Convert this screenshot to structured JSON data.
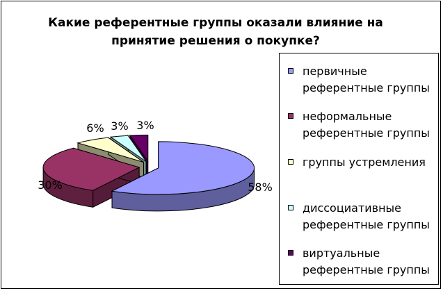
{
  "chart_data": {
    "type": "pie",
    "title": "Какие референтные группы оказали влияние на принятие решения о покупке?",
    "categories": [
      "первичные референтные группы",
      "неформальные референтные группы",
      "группы устремления",
      "диссоциативные референтные группы",
      "виртуальные референтные группы"
    ],
    "values": [
      58,
      30,
      6,
      3,
      3
    ],
    "data_labels": [
      "58%",
      "30%",
      "6%",
      "3%",
      "3%"
    ],
    "colors": [
      "#9999ff",
      "#993366",
      "#ffffcc",
      "#ccffff",
      "#660066"
    ],
    "legend_position": "right",
    "style": "3d-exploded"
  },
  "legend": {
    "items": [
      {
        "label": "первичные референтные группы",
        "color": "#9999ff"
      },
      {
        "label": "неформальные референтные группы",
        "color": "#993366"
      },
      {
        "label": "группы устремления",
        "color": "#ffffcc"
      },
      {
        "label": "диссоциативные референтные группы",
        "color": "#ccffff"
      },
      {
        "label": "виртуальные референтные группы",
        "color": "#660066"
      }
    ]
  }
}
